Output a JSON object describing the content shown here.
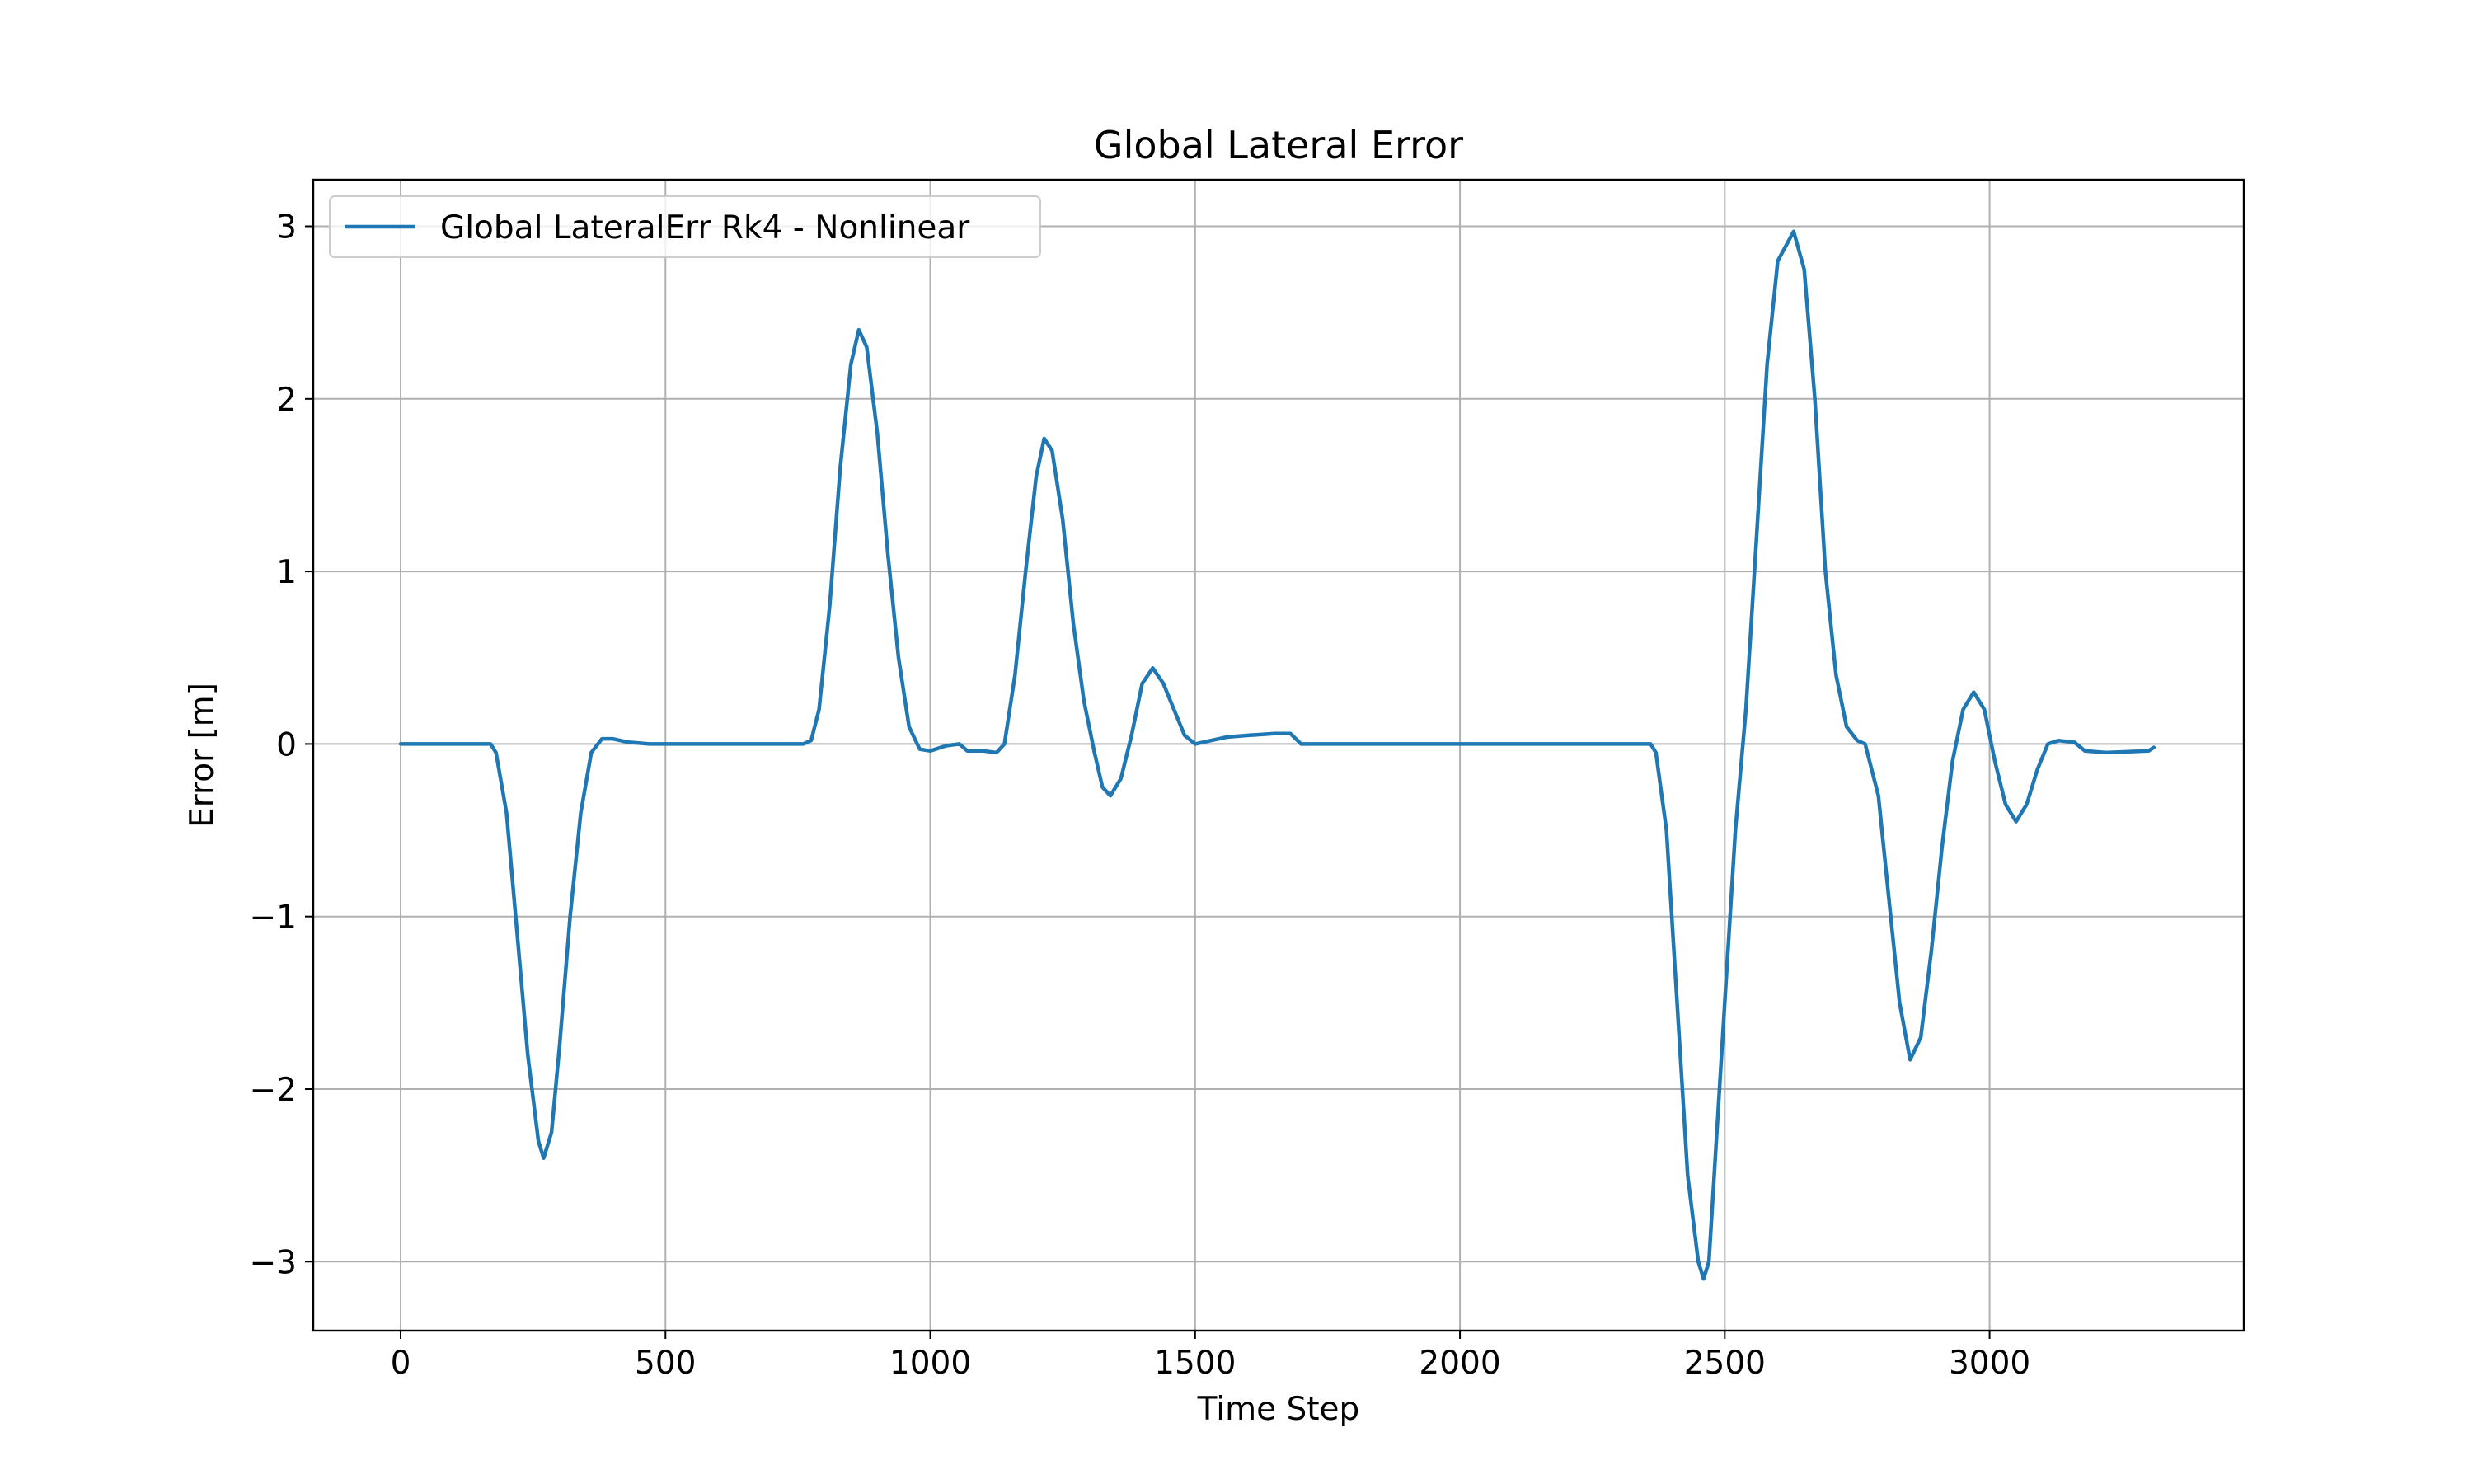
{
  "chart_data": {
    "type": "line",
    "title": "Global Lateral Error",
    "xlabel": "Time Step",
    "ylabel": "Error [m]",
    "xlim": [
      -165,
      3480
    ],
    "ylim": [
      -3.4,
      3.27
    ],
    "xticks": [
      0,
      500,
      1000,
      1500,
      2000,
      2500,
      3000
    ],
    "yticks": [
      3,
      2,
      1,
      0,
      -1,
      -2,
      -3
    ],
    "xtick_labels": [
      "0",
      "500",
      "1000",
      "1500",
      "2000",
      "2500",
      "3000"
    ],
    "ytick_labels": [
      "3",
      "2",
      "1",
      "0",
      "−1",
      "−2",
      "−3"
    ],
    "grid": true,
    "legend": "upper left",
    "series": [
      {
        "name": "Global LateralErr Rk4 - Nonlinear",
        "color": "#1f77b4",
        "points": [
          [
            0,
            0
          ],
          [
            100,
            0
          ],
          [
            170,
            0
          ],
          [
            180,
            -0.05
          ],
          [
            200,
            -0.4
          ],
          [
            220,
            -1.1
          ],
          [
            240,
            -1.8
          ],
          [
            260,
            -2.3
          ],
          [
            270,
            -2.4
          ],
          [
            285,
            -2.25
          ],
          [
            300,
            -1.75
          ],
          [
            320,
            -1.0
          ],
          [
            340,
            -0.4
          ],
          [
            360,
            -0.05
          ],
          [
            380,
            0.03
          ],
          [
            400,
            0.03
          ],
          [
            430,
            0.01
          ],
          [
            470,
            0
          ],
          [
            600,
            0
          ],
          [
            760,
            0
          ],
          [
            775,
            0.02
          ],
          [
            790,
            0.2
          ],
          [
            810,
            0.8
          ],
          [
            830,
            1.6
          ],
          [
            850,
            2.2
          ],
          [
            865,
            2.4
          ],
          [
            880,
            2.3
          ],
          [
            900,
            1.8
          ],
          [
            920,
            1.1
          ],
          [
            940,
            0.5
          ],
          [
            960,
            0.1
          ],
          [
            980,
            -0.03
          ],
          [
            1000,
            -0.04
          ],
          [
            1030,
            -0.01
          ],
          [
            1055,
            0.0
          ],
          [
            1070,
            -0.04
          ],
          [
            1100,
            -0.04
          ],
          [
            1125,
            -0.05
          ],
          [
            1140,
            0.0
          ],
          [
            1160,
            0.4
          ],
          [
            1180,
            1.0
          ],
          [
            1200,
            1.55
          ],
          [
            1215,
            1.77
          ],
          [
            1230,
            1.7
          ],
          [
            1250,
            1.3
          ],
          [
            1270,
            0.7
          ],
          [
            1290,
            0.25
          ],
          [
            1310,
            -0.05
          ],
          [
            1325,
            -0.25
          ],
          [
            1340,
            -0.3
          ],
          [
            1360,
            -0.2
          ],
          [
            1380,
            0.05
          ],
          [
            1400,
            0.35
          ],
          [
            1420,
            0.44
          ],
          [
            1440,
            0.35
          ],
          [
            1460,
            0.2
          ],
          [
            1480,
            0.05
          ],
          [
            1500,
            0.0
          ],
          [
            1530,
            0.02
          ],
          [
            1560,
            0.04
          ],
          [
            1600,
            0.05
          ],
          [
            1650,
            0.06
          ],
          [
            1680,
            0.06
          ],
          [
            1700,
            0
          ],
          [
            1800,
            0
          ],
          [
            2000,
            0
          ],
          [
            2200,
            0
          ],
          [
            2360,
            0
          ],
          [
            2370,
            -0.05
          ],
          [
            2390,
            -0.5
          ],
          [
            2410,
            -1.5
          ],
          [
            2430,
            -2.5
          ],
          [
            2450,
            -3.0
          ],
          [
            2460,
            -3.1
          ],
          [
            2470,
            -3.0
          ],
          [
            2480,
            -2.5
          ],
          [
            2500,
            -1.5
          ],
          [
            2520,
            -0.5
          ],
          [
            2540,
            0.2
          ],
          [
            2560,
            1.2
          ],
          [
            2580,
            2.2
          ],
          [
            2600,
            2.8
          ],
          [
            2630,
            2.97
          ],
          [
            2650,
            2.75
          ],
          [
            2670,
            2.0
          ],
          [
            2690,
            1.0
          ],
          [
            2710,
            0.4
          ],
          [
            2730,
            0.1
          ],
          [
            2750,
            0.02
          ],
          [
            2765,
            0.0
          ],
          [
            2790,
            -0.3
          ],
          [
            2810,
            -0.9
          ],
          [
            2830,
            -1.5
          ],
          [
            2850,
            -1.83
          ],
          [
            2870,
            -1.7
          ],
          [
            2890,
            -1.2
          ],
          [
            2910,
            -0.6
          ],
          [
            2930,
            -0.1
          ],
          [
            2950,
            0.2
          ],
          [
            2970,
            0.3
          ],
          [
            2990,
            0.2
          ],
          [
            3010,
            -0.1
          ],
          [
            3030,
            -0.35
          ],
          [
            3050,
            -0.45
          ],
          [
            3070,
            -0.35
          ],
          [
            3090,
            -0.15
          ],
          [
            3110,
            0.0
          ],
          [
            3130,
            0.02
          ],
          [
            3160,
            0.01
          ],
          [
            3180,
            -0.04
          ],
          [
            3220,
            -0.05
          ],
          [
            3300,
            -0.04
          ],
          [
            3310,
            -0.02
          ]
        ]
      }
    ]
  }
}
